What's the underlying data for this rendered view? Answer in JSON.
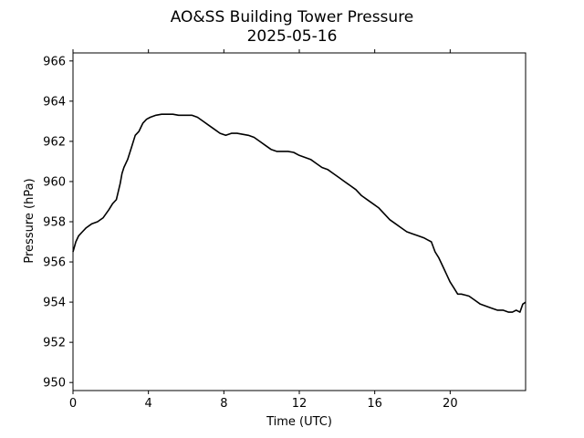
{
  "chart_data": {
    "type": "line",
    "title": "AO&SS Building Tower Pressure",
    "subtitle": "2025-05-16",
    "xlabel": "Time (UTC)",
    "ylabel": "Pressure (hPa)",
    "xlim": [
      0,
      24
    ],
    "ylim": [
      949.6,
      966.4
    ],
    "xticks": [
      0,
      4,
      8,
      12,
      16,
      20
    ],
    "xtick_labels": [
      "0",
      "4",
      "8",
      "12",
      "16",
      "20"
    ],
    "yticks": [
      950,
      952,
      954,
      956,
      958,
      960,
      962,
      964,
      966
    ],
    "ytick_labels": [
      "950",
      "952",
      "954",
      "956",
      "958",
      "960",
      "962",
      "964",
      "966"
    ],
    "grid": false,
    "line_color": "#000000",
    "series": [
      {
        "x": [
          0.0,
          0.15,
          0.3,
          0.5,
          0.7,
          1.0,
          1.3,
          1.6,
          1.9,
          2.1,
          2.3,
          2.5,
          2.6,
          2.7,
          2.9,
          3.1,
          3.3,
          3.5,
          3.7,
          3.9,
          4.1,
          4.4,
          4.7,
          5.0,
          5.3,
          5.6,
          6.0,
          6.3,
          6.6,
          6.9,
          7.2,
          7.5,
          7.8,
          8.1,
          8.4,
          8.7,
          9.0,
          9.3,
          9.6,
          9.9,
          10.2,
          10.5,
          10.8,
          11.1,
          11.4,
          11.7,
          12.0,
          12.3,
          12.6,
          12.9,
          13.2,
          13.5,
          13.8,
          14.1,
          14.4,
          14.7,
          15.0,
          15.3,
          15.6,
          15.9,
          16.2,
          16.5,
          16.8,
          17.1,
          17.4,
          17.7,
          18.0,
          18.3,
          18.6,
          18.8,
          19.0,
          19.2,
          19.4,
          19.6,
          19.8,
          20.0,
          20.2,
          20.4,
          20.6,
          20.8,
          21.0,
          21.3,
          21.6,
          21.9,
          22.2,
          22.5,
          22.8,
          23.1,
          23.3,
          23.5,
          23.7,
          23.85,
          24.0
        ],
        "y": [
          956.5,
          957.0,
          957.3,
          957.5,
          957.7,
          957.9,
          958.0,
          958.2,
          958.6,
          958.9,
          959.1,
          959.9,
          960.4,
          960.7,
          961.1,
          961.7,
          962.3,
          962.5,
          962.9,
          963.1,
          963.2,
          963.3,
          963.35,
          963.35,
          963.35,
          963.3,
          963.3,
          963.3,
          963.2,
          963.0,
          962.8,
          962.6,
          962.4,
          962.3,
          962.4,
          962.4,
          962.35,
          962.3,
          962.2,
          962.0,
          961.8,
          961.6,
          961.5,
          961.5,
          961.5,
          961.45,
          961.3,
          961.2,
          961.1,
          960.9,
          960.7,
          960.6,
          960.4,
          960.2,
          960.0,
          959.8,
          959.6,
          959.3,
          959.1,
          958.9,
          958.7,
          958.4,
          958.1,
          957.9,
          957.7,
          957.5,
          957.4,
          957.3,
          957.2,
          957.1,
          957.0,
          956.5,
          956.2,
          955.8,
          955.4,
          955.0,
          954.7,
          954.4,
          954.4,
          954.35,
          954.3,
          954.1,
          953.9,
          953.8,
          953.7,
          953.6,
          953.6,
          953.5,
          953.5,
          953.6,
          953.5,
          953.9,
          954.0
        ]
      }
    ]
  }
}
